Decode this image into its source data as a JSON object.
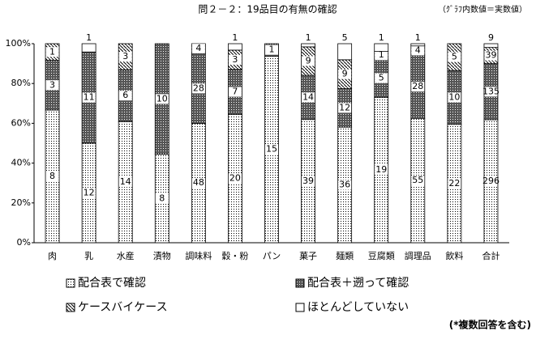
{
  "chart_data": {
    "type": "stacked_percent_bar",
    "title": "問２－２：19品目の有無の確認",
    "subtitle": "（ｸﾞﾗﾌ内数値＝実数値）",
    "note": "(*複数回答を含む)",
    "categories": [
      "肉",
      "乳",
      "水産",
      "漬物",
      "調味料",
      "穀・粉",
      "パン",
      "菓子",
      "麺類",
      "豆腐類",
      "調理品",
      "飲料",
      "合計"
    ],
    "series": [
      {
        "name": "配合表で確認",
        "color": "dots",
        "values": [
          8,
          12,
          14,
          8,
          48,
          20,
          15,
          39,
          36,
          19,
          55,
          22,
          296
        ]
      },
      {
        "name": "配合表＋遡って確認",
        "color": "dark",
        "values": [
          3,
          11,
          6,
          10,
          28,
          7,
          1,
          14,
          12,
          5,
          28,
          10,
          135
        ]
      },
      {
        "name": "ケースバイケース",
        "color": "hatch",
        "values": [
          1,
          null,
          3,
          null,
          4,
          3,
          null,
          9,
          9,
          1,
          4,
          5,
          39
        ]
      },
      {
        "name": "ほとんどしていない",
        "color": "white",
        "values": [
          null,
          1,
          null,
          null,
          null,
          1,
          null,
          1,
          5,
          1,
          1,
          null,
          9
        ]
      }
    ],
    "ylim": [
      0,
      100
    ],
    "yticks": [
      {
        "value": 0,
        "label": "0%"
      },
      {
        "value": 20,
        "label": "20%"
      },
      {
        "value": 40,
        "label": "40%"
      },
      {
        "value": 60,
        "label": "60%"
      },
      {
        "value": 80,
        "label": "80%"
      },
      {
        "value": 100,
        "label": "100%"
      }
    ]
  }
}
